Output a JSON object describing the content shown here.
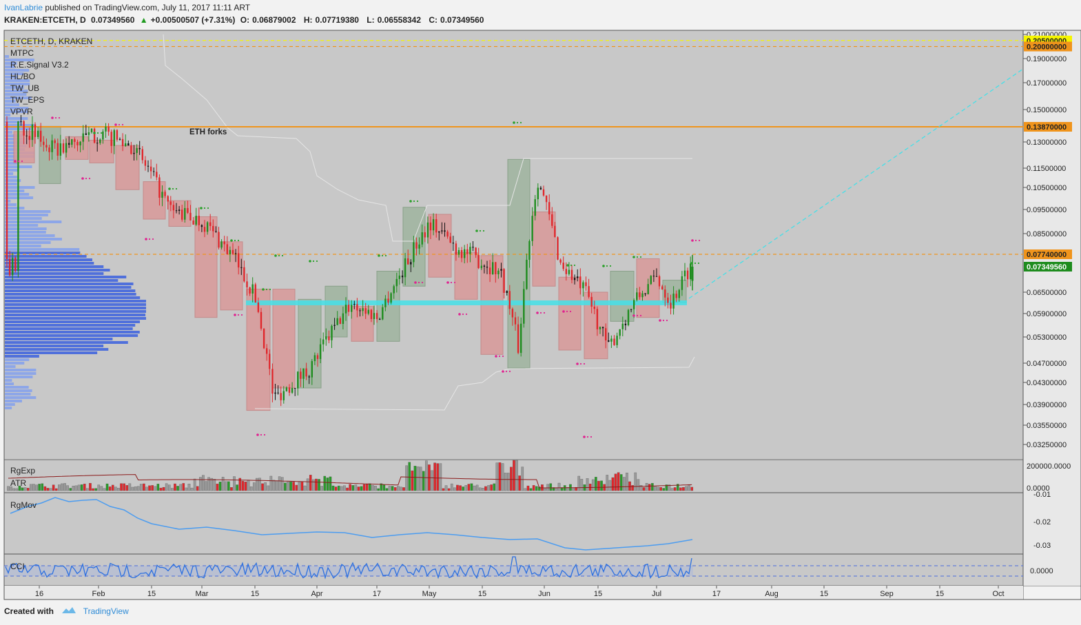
{
  "header": {
    "author": "IvanLabrie",
    "published_text": "published on TradingView.com, July 11, 2017 11:11 ART",
    "symbol_line": "KRAKEN:ETCETH, D",
    "last": "0.07349560",
    "change": "+0.00500507 (+7.31%)",
    "o_label": "O:",
    "o": "0.06879002",
    "h_label": "H:",
    "h": "0.07719380",
    "l_label": "L:",
    "l": "0.06558342",
    "c_label": "C:",
    "c": "0.07349560"
  },
  "legend": [
    "ETCETH, D, KRAKEN",
    "MTPC",
    "R.E.Signal V3.2",
    "HL/BO",
    "TW_UB",
    "TW_EPS",
    "VPVR"
  ],
  "annotation": "ETH forks",
  "price_axis_labels": [
    "0.21000000",
    "0.19000000",
    "0.17000000",
    "0.15000000",
    "0.13000000",
    "0.11500000",
    "0.10500000",
    "0.09500000",
    "0.08500000",
    "0.06500000",
    "0.05900000",
    "0.05300000",
    "0.04700000",
    "0.04300000",
    "0.03900000",
    "0.03550000",
    "0.03250000"
  ],
  "price_tags": [
    {
      "text": "0.20500000",
      "bg": "#f5f500",
      "fg": "#222222"
    },
    {
      "text": "0.20000000",
      "bg": "#f0941c",
      "fg": "#222222"
    },
    {
      "text": "0.13870000",
      "bg": "#f0941c",
      "fg": "#222222"
    },
    {
      "text": "0.07740000",
      "bg": "#f0941c",
      "fg": "#222222"
    },
    {
      "text": "0.07349560",
      "bg": "#1e8c1e",
      "fg": "#ffffff"
    }
  ],
  "time_axis_labels": [
    "16",
    "Feb",
    "15",
    "Mar",
    "15",
    "Apr",
    "17",
    "May",
    "15",
    "Jun",
    "15",
    "Jul",
    "17",
    "Aug",
    "15",
    "Sep",
    "15",
    "Oct"
  ],
  "panes": {
    "volume": {
      "labels": [
        "RgExp",
        "ATR"
      ],
      "axis": [
        "200000.0000",
        "0.0000"
      ]
    },
    "rgmov": {
      "label": "RgMov",
      "axis": [
        "-0.01",
        "-0.02",
        "-0.03"
      ]
    },
    "cci": {
      "label": "CCI",
      "axis": [
        "0.0000"
      ]
    }
  },
  "footer": {
    "created_with": "Created with",
    "brand": "TradingView"
  },
  "colors": {
    "up": "#1e8c1e",
    "down": "#e0262b",
    "bg": "#c8c8c8",
    "orange": "#f0941c",
    "cyan": "#44e0e8",
    "volume_profile": "#4a6bdc"
  },
  "chart_data": {
    "type": "candlestick",
    "title": "ETCETH, D, KRAKEN",
    "x_range": [
      "2017-01-16",
      "2017-10-01"
    ],
    "ylim": [
      0.03,
      0.21
    ],
    "y_scale": "log",
    "horizontal_levels": [
      0.205,
      0.2,
      0.1387,
      0.0774
    ],
    "close_series_approx": [
      {
        "date": "2017-01-10",
        "close": 0.142
      },
      {
        "date": "2017-01-20",
        "close": 0.125
      },
      {
        "date": "2017-02-01",
        "close": 0.135
      },
      {
        "date": "2017-02-10",
        "close": 0.128
      },
      {
        "date": "2017-02-20",
        "close": 0.095
      },
      {
        "date": "2017-03-01",
        "close": 0.09
      },
      {
        "date": "2017-03-10",
        "close": 0.075
      },
      {
        "date": "2017-03-15",
        "close": 0.064
      },
      {
        "date": "2017-03-20",
        "close": 0.04
      },
      {
        "date": "2017-03-30",
        "close": 0.046
      },
      {
        "date": "2017-04-10",
        "close": 0.062
      },
      {
        "date": "2017-04-17",
        "close": 0.058
      },
      {
        "date": "2017-04-25",
        "close": 0.075
      },
      {
        "date": "2017-05-01",
        "close": 0.09
      },
      {
        "date": "2017-05-08",
        "close": 0.08
      },
      {
        "date": "2017-05-20",
        "close": 0.072
      },
      {
        "date": "2017-05-25",
        "close": 0.05
      },
      {
        "date": "2017-05-30",
        "close": 0.11
      },
      {
        "date": "2017-06-05",
        "close": 0.075
      },
      {
        "date": "2017-06-12",
        "close": 0.065
      },
      {
        "date": "2017-06-18",
        "close": 0.05
      },
      {
        "date": "2017-06-25",
        "close": 0.062
      },
      {
        "date": "2017-07-01",
        "close": 0.07
      },
      {
        "date": "2017-07-05",
        "close": 0.062
      },
      {
        "date": "2017-07-10",
        "close": 0.0735
      }
    ]
  }
}
